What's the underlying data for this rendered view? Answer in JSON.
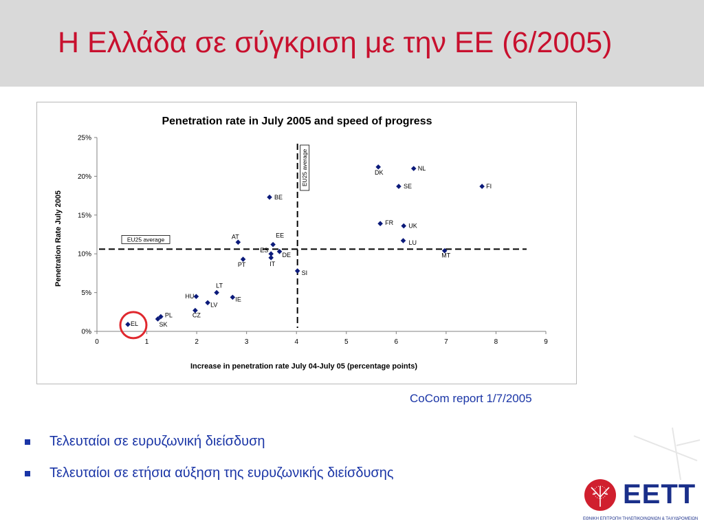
{
  "slide": {
    "title": "Η Ελλάδα σε σύγκριση με την ΕΕ (6/2005)",
    "source": "CoCom report 1/7/2005",
    "bullets": [
      "Τελευταίοι σε ευρυζωνική διείσδυση",
      "Τελευταίοι σε ετήσια αύξηση της ευρυζωνικής διείσδυσης"
    ],
    "logo": {
      "wordmark": "ΕΕΤΤ",
      "subtext": "ΕΘΝΙΚΗ ΕΠΙΤΡΟΠΗ ΤΗΛΕΠΙΚΟΙΝΩΝΙΩΝ & ΤΑΧΥΔΡΟΜΕΙΩΝ"
    }
  },
  "chart_data": {
    "type": "scatter",
    "title": "Penetration rate in July 2005 and speed of progress",
    "xlabel": "Increase in penetration rate July 04-July 05 (percentage points)",
    "ylabel": "Penetration Rate July 2005",
    "xlim": [
      0,
      9
    ],
    "ylim": [
      0,
      25
    ],
    "x_ticks": [
      "0",
      "1",
      "2",
      "3",
      "4",
      "5",
      "6",
      "7",
      "8",
      "9"
    ],
    "y_ticks": [
      "0%",
      "5%",
      "10%",
      "15%",
      "20%",
      "25%"
    ],
    "grid": false,
    "points": [
      {
        "label": "EL",
        "x": 0.62,
        "y": 0.9
      },
      {
        "label": "SK",
        "x": 1.22,
        "y": 1.6
      },
      {
        "label": "PL",
        "x": 1.28,
        "y": 1.9
      },
      {
        "label": "CZ",
        "x": 1.97,
        "y": 2.7
      },
      {
        "label": "HU",
        "x": 1.99,
        "y": 4.5
      },
      {
        "label": "LV",
        "x": 2.22,
        "y": 3.7
      },
      {
        "label": "LT",
        "x": 2.4,
        "y": 5.0
      },
      {
        "label": "IE",
        "x": 2.72,
        "y": 4.4
      },
      {
        "label": "PT",
        "x": 2.93,
        "y": 9.3
      },
      {
        "label": "AT",
        "x": 2.83,
        "y": 11.5
      },
      {
        "label": "ES",
        "x": 3.49,
        "y": 10.0
      },
      {
        "label": "IT",
        "x": 3.49,
        "y": 9.5
      },
      {
        "label": "EE",
        "x": 3.53,
        "y": 11.2
      },
      {
        "label": "DE",
        "x": 3.66,
        "y": 10.3
      },
      {
        "label": "BE",
        "x": 3.46,
        "y": 17.3
      },
      {
        "label": "SI",
        "x": 4.02,
        "y": 7.8
      },
      {
        "label": "DK",
        "x": 5.64,
        "y": 21.2
      },
      {
        "label": "NL",
        "x": 6.35,
        "y": 21.0
      },
      {
        "label": "SE",
        "x": 6.05,
        "y": 18.7
      },
      {
        "label": "FI",
        "x": 7.72,
        "y": 18.7
      },
      {
        "label": "FR",
        "x": 5.68,
        "y": 13.9
      },
      {
        "label": "UK",
        "x": 6.15,
        "y": 13.6
      },
      {
        "label": "LU",
        "x": 6.14,
        "y": 11.7
      },
      {
        "label": "MT",
        "x": 6.97,
        "y": 10.4
      }
    ],
    "reference_lines": [
      {
        "orientation": "horizontal",
        "value": 10.6,
        "label": "EU25 average"
      },
      {
        "orientation": "vertical",
        "value": 4.02,
        "label": "EU25 average"
      }
    ],
    "highlight": "EL",
    "colors": {
      "marker": "#0b1a7a",
      "highlight_ring": "#e0282e",
      "text": "#000000"
    }
  }
}
